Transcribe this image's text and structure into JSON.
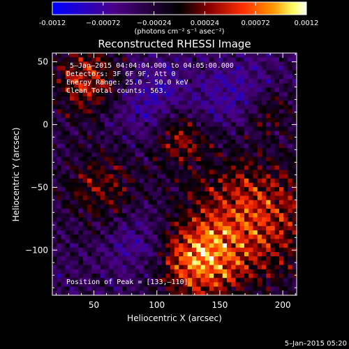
{
  "chart_data": {
    "type": "heatmap",
    "title": "Reconstructed RHESSI Image",
    "xlabel": "Heliocentric X (arcsec)",
    "ylabel": "Heliocentric Y (arcsec)",
    "xlim": [
      17,
      211
    ],
    "ylim": [
      -136,
      57
    ],
    "x_ticks": [
      50,
      100,
      150,
      200
    ],
    "y_ticks": [
      50,
      0,
      -50,
      -100
    ],
    "colorbar": {
      "range": [
        -0.0012,
        0.0012
      ],
      "ticks": [
        "-0.0012",
        "−0.00072",
        "−0.00024",
        "0.00024",
        "0.00072",
        "0.0012"
      ],
      "ticks_values": [
        -0.0012,
        -0.00072,
        -0.00024,
        0.00024,
        0.00072,
        0.0012
      ],
      "unit_label": "(photons cm⁻² s⁻¹ asec⁻²)",
      "colors": [
        "#0000ff",
        "#4b0082",
        "#000000",
        "#8b0000",
        "#ff3000",
        "#ff9900",
        "#ffff66",
        "#ffffff"
      ]
    },
    "annotations": [
      "5–Jan–2015 04:04:04.000 to 04:05:00.000",
      "Detectors: 3F 6F 9F, Att 0",
      "Energy Range: 25.0 – 50.0 keV",
      "Clean     Total counts: 563."
    ],
    "peak_label": "Position of Peak = [133,–110]",
    "peak": [
      133,
      -110
    ],
    "footer_date": "5–Jan–2015 05:20"
  }
}
